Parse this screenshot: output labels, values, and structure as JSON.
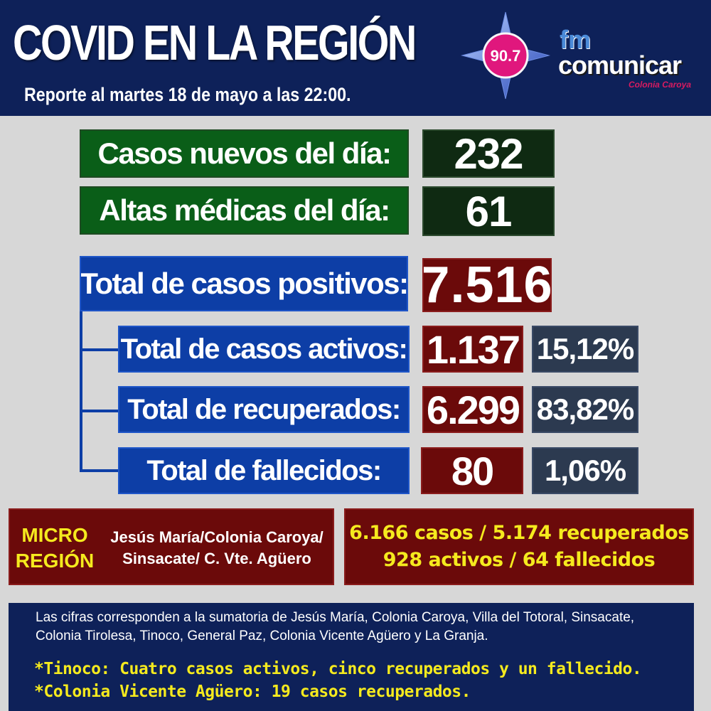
{
  "header": {
    "title": "COVID EN LA REGIÓN",
    "subtitle": "Reporte al martes 18 de mayo a las 22:00.",
    "logo": {
      "frequency": "90.7",
      "fm": "fm",
      "name": "comunicar",
      "city": "Colonia Caroya"
    }
  },
  "daily": {
    "new_cases_label": "Casos nuevos del día:",
    "new_cases_value": "232",
    "discharges_label": "Altas médicas del día:",
    "discharges_value": "61"
  },
  "totals": {
    "positive_label": "Total de casos positivos:",
    "positive_value": "7.516",
    "rows": [
      {
        "label": "Total de casos activos:",
        "value": "1.137",
        "percent": "15,12%"
      },
      {
        "label": "Total de recuperados:",
        "value": "6.299",
        "percent": "83,82%"
      },
      {
        "label": "Total de fallecidos:",
        "value": "80",
        "percent": "1,06%"
      }
    ]
  },
  "micro_region": {
    "title_line1": "MICRO",
    "title_line2": "REGIÓN",
    "towns_line1": "Jesús María/Colonia Caroya/",
    "towns_line2": "Sinsacate/ C. Vte. Agüero",
    "stats_line1": "6.166 casos / 5.174 recuperados",
    "stats_line2": "928 activos  / 64 fallecidos"
  },
  "footer": {
    "note": "Las cifras corresponden a la sumatoria de Jesús María, Colonia Caroya, Villa del Totoral, Sinsacate, Colonia Tirolesa, Tinoco, General Paz, Colonia Vicente Agüero  y La Granja.",
    "line1": "*Tinoco: Cuatro casos activos, cinco recuperados y un fallecido.",
    "line2": "*Colonia Vicente Agüero: 19 casos recuperados."
  },
  "colors": {
    "navy": "#0e2159",
    "green": "#0a5e18",
    "blue": "#0d3ea6",
    "maroon": "#6b0a0a",
    "slate": "#2c3a50",
    "yellow": "#f5ea1e",
    "logo_pink": "#e0177d"
  }
}
